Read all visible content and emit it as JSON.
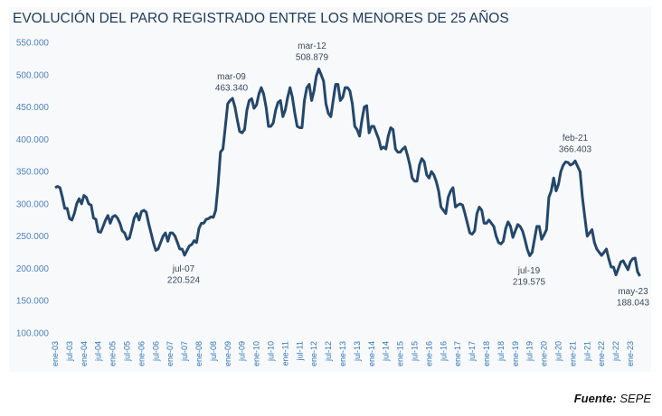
{
  "chart_data": {
    "type": "line",
    "title": "EVOLUCIÓN DEL PARO REGISTRADO ENTRE LOS MENORES DE 25 AÑOS",
    "xlabel": "",
    "ylabel": "",
    "ylim": [
      100000,
      550000
    ],
    "yticks": [
      "550.000",
      "500.000",
      "450.000",
      "400.000",
      "350.000",
      "300.000",
      "250.000",
      "200.000",
      "150.000",
      "100.000"
    ],
    "ytick_values": [
      550000,
      500000,
      450000,
      400000,
      350000,
      300000,
      250000,
      200000,
      150000,
      100000
    ],
    "xticks": [
      "ene-03",
      "jul-03",
      "ene-04",
      "jul-04",
      "ene-05",
      "jul-05",
      "ene-06",
      "jul-06",
      "ene-07",
      "jul-07",
      "ene-08",
      "jul-08",
      "ene-09",
      "jul-09",
      "ene-10",
      "jul-10",
      "ene-11",
      "jul-11",
      "ene-12",
      "jul-12",
      "ene-13",
      "jul-13",
      "ene-14",
      "jul-14",
      "ene-15",
      "jul-15",
      "ene-16",
      "jul-16",
      "ene-17",
      "jul-17",
      "ene-18",
      "jul-18",
      "ene-19",
      "jul-19",
      "ene-20",
      "jul-20",
      "ene-21",
      "jul-21",
      "ene-22",
      "jul-22",
      "ene-23"
    ],
    "x_start": "ene-03",
    "x_end": "may-23",
    "frequency": "monthly",
    "grid": false,
    "line_color": "#24476b",
    "values": [
      325000,
      327000,
      325000,
      310000,
      293000,
      293000,
      277000,
      275000,
      285000,
      300000,
      308000,
      300000,
      313000,
      310000,
      300000,
      298000,
      278000,
      276000,
      257000,
      256000,
      265000,
      275000,
      282000,
      270000,
      280000,
      282000,
      278000,
      270000,
      258000,
      255000,
      245000,
      247000,
      262000,
      278000,
      285000,
      275000,
      288000,
      290000,
      287000,
      270000,
      255000,
      240000,
      228000,
      230000,
      240000,
      250000,
      255000,
      242000,
      255000,
      255000,
      250000,
      240000,
      230000,
      230000,
      220524,
      228000,
      235000,
      237000,
      243000,
      240000,
      262000,
      270000,
      270000,
      276000,
      277000,
      280000,
      279000,
      290000,
      330000,
      380000,
      385000,
      420000,
      455000,
      460000,
      463340,
      450000,
      430000,
      412000,
      410000,
      415000,
      445000,
      460000,
      463000,
      448000,
      453000,
      470000,
      480000,
      470000,
      450000,
      420000,
      420000,
      425000,
      445000,
      457000,
      460000,
      435000,
      445000,
      465000,
      480000,
      465000,
      440000,
      420000,
      418000,
      418000,
      460000,
      480000,
      485000,
      460000,
      475000,
      498000,
      508879,
      500000,
      490000,
      455000,
      440000,
      435000,
      460000,
      485000,
      485000,
      460000,
      465000,
      480000,
      480000,
      475000,
      455000,
      420000,
      415000,
      405000,
      430000,
      450000,
      452000,
      410000,
      420000,
      420000,
      410000,
      400000,
      385000,
      388000,
      385000,
      405000,
      418000,
      415000,
      385000,
      380000,
      380000,
      385000,
      388000,
      375000,
      360000,
      340000,
      335000,
      335000,
      360000,
      370000,
      365000,
      345000,
      340000,
      350000,
      345000,
      335000,
      320000,
      295000,
      290000,
      285000,
      310000,
      320000,
      325000,
      295000,
      298000,
      300000,
      298000,
      285000,
      270000,
      255000,
      253000,
      258000,
      285000,
      295000,
      290000,
      270000,
      270000,
      275000,
      270000,
      265000,
      250000,
      240000,
      238000,
      242000,
      262000,
      272000,
      265000,
      248000,
      258000,
      268000,
      265000,
      258000,
      245000,
      230000,
      219575,
      225000,
      245000,
      265000,
      265000,
      245000,
      252000,
      260000,
      310000,
      320000,
      340000,
      320000,
      330000,
      350000,
      360000,
      365000,
      364000,
      360000,
      362000,
      366403,
      358000,
      350000,
      310000,
      280000,
      250000,
      255000,
      260000,
      240000,
      230000,
      225000,
      220000,
      225000,
      230000,
      215000,
      202000,
      202000,
      190000,
      200000,
      210000,
      212000,
      205000,
      198000,
      210000,
      215000,
      216000,
      195000,
      188043
    ],
    "annotations": [
      {
        "month": "mar-09",
        "value_label": "463.340",
        "index": 74
      },
      {
        "month": "jul-07",
        "value_label": "220.524",
        "index": 54
      },
      {
        "month": "mar-12",
        "value_label": "508.879",
        "index": 110
      },
      {
        "month": "jul-19",
        "value_label": "219.575",
        "index": 198
      },
      {
        "month": "feb-21",
        "value_label": "366.403",
        "index": 217
      },
      {
        "month": "may-23",
        "value_label": "188.043",
        "index": 244
      }
    ]
  },
  "footer": {
    "source_label": "Fuente:",
    "source_value": "SEPE"
  }
}
